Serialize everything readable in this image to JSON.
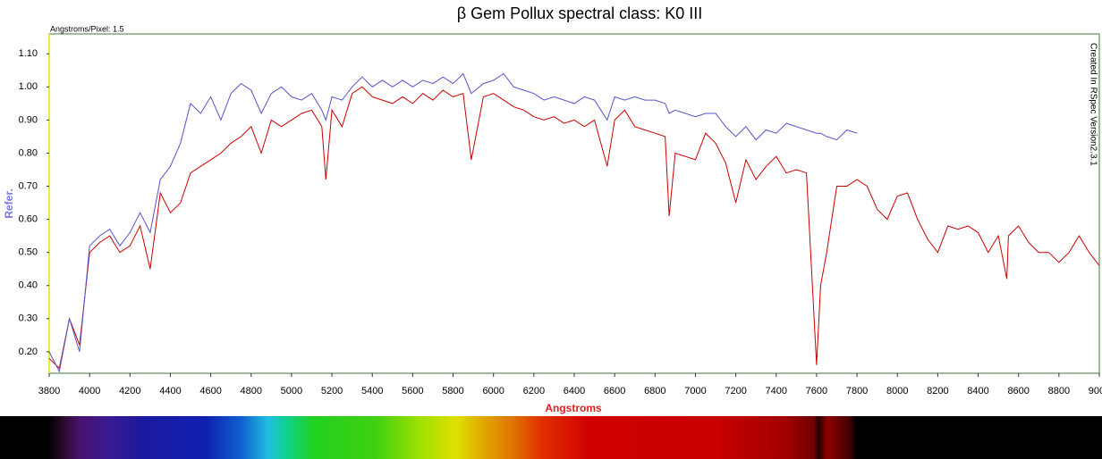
{
  "chart_data": {
    "type": "line",
    "title": "β Gem Pollux spectral class: K0 III",
    "xlabel": "Angstroms",
    "ylabel": "Refer.",
    "annotations": [
      "Angstroms/Pixel: 1.5",
      "Created In RSpec Version2.3.1"
    ],
    "x": [
      3800,
      3850,
      3900,
      3950,
      4000,
      4050,
      4100,
      4150,
      4200,
      4250,
      4300,
      4350,
      4400,
      4450,
      4500,
      4550,
      4600,
      4650,
      4700,
      4750,
      4800,
      4850,
      4900,
      4950,
      5000,
      5050,
      5100,
      5150,
      5170,
      5200,
      5250,
      5300,
      5350,
      5400,
      5450,
      5500,
      5550,
      5600,
      5650,
      5700,
      5750,
      5800,
      5850,
      5890,
      5950,
      6000,
      6050,
      6100,
      6150,
      6200,
      6250,
      6300,
      6350,
      6400,
      6450,
      6500,
      6563,
      6600,
      6650,
      6700,
      6750,
      6800,
      6850,
      6870,
      6900,
      6950,
      7000,
      7050,
      7100,
      7150,
      7200,
      7250,
      7300,
      7350,
      7400,
      7450,
      7500,
      7550,
      7600,
      7620,
      7650,
      7700,
      7750,
      7800,
      7850,
      7900,
      7950,
      8000,
      8050,
      8100,
      8150,
      8200,
      8250,
      8300,
      8350,
      8400,
      8450,
      8500,
      8542,
      8550,
      8600,
      8650,
      8700,
      8750,
      8800,
      8850,
      8900,
      8950,
      9000
    ],
    "series": [
      {
        "color": "#cc0000",
        "values": [
          0.18,
          0.15,
          0.3,
          0.22,
          0.5,
          0.53,
          0.55,
          0.5,
          0.52,
          0.58,
          0.45,
          0.68,
          0.62,
          0.65,
          0.74,
          0.76,
          0.78,
          0.8,
          0.83,
          0.85,
          0.88,
          0.8,
          0.9,
          0.88,
          0.9,
          0.92,
          0.93,
          0.88,
          0.72,
          0.93,
          0.88,
          0.98,
          1.0,
          0.97,
          0.96,
          0.95,
          0.97,
          0.95,
          0.98,
          0.96,
          0.99,
          0.97,
          0.98,
          0.78,
          0.97,
          0.98,
          0.96,
          0.94,
          0.93,
          0.91,
          0.9,
          0.91,
          0.89,
          0.9,
          0.88,
          0.9,
          0.76,
          0.9,
          0.93,
          0.88,
          0.87,
          0.86,
          0.85,
          0.61,
          0.8,
          0.79,
          0.78,
          0.86,
          0.83,
          0.77,
          0.65,
          0.78,
          0.72,
          0.76,
          0.79,
          0.74,
          0.75,
          0.74,
          0.16,
          0.4,
          0.5,
          0.7,
          0.7,
          0.72,
          0.7,
          0.63,
          0.6,
          0.67,
          0.68,
          0.6,
          0.54,
          0.5,
          0.58,
          0.57,
          0.58,
          0.56,
          0.5,
          0.55,
          0.42,
          0.55,
          0.58,
          0.53,
          0.5,
          0.5,
          0.47,
          0.5,
          0.55,
          0.5,
          0.46
        ]
      },
      {
        "color": "#5555cc",
        "values": [
          0.2,
          0.14,
          0.3,
          0.2,
          0.52,
          0.55,
          0.57,
          0.52,
          0.56,
          0.62,
          0.56,
          0.72,
          0.76,
          0.83,
          0.95,
          0.92,
          0.97,
          0.9,
          0.98,
          1.01,
          0.99,
          0.92,
          0.98,
          1.0,
          0.97,
          0.96,
          0.98,
          0.93,
          0.9,
          0.97,
          0.96,
          1.0,
          1.03,
          1.0,
          1.02,
          1.0,
          1.02,
          1.0,
          1.02,
          1.01,
          1.03,
          1.01,
          1.04,
          0.98,
          1.01,
          1.02,
          1.04,
          1.0,
          0.99,
          0.98,
          0.96,
          0.97,
          0.96,
          0.95,
          0.97,
          0.96,
          0.9,
          0.97,
          0.96,
          0.97,
          0.96,
          0.96,
          0.95,
          0.92,
          0.93,
          0.92,
          0.91,
          0.92,
          0.92,
          0.88,
          0.85,
          0.88,
          0.84,
          0.87,
          0.86,
          0.89,
          0.88,
          0.87,
          0.86,
          0.86,
          0.85,
          0.84,
          0.87,
          0.86,
          null,
          null,
          null,
          null,
          null,
          null,
          null,
          null,
          null,
          null,
          null,
          null,
          null,
          null,
          null,
          null,
          null,
          null,
          null,
          null,
          null,
          null,
          null,
          null,
          null
        ]
      }
    ],
    "xlim": [
      3800,
      9000
    ],
    "xticks": [
      3800,
      4000,
      4200,
      4400,
      4600,
      4800,
      5000,
      5200,
      5400,
      5600,
      5800,
      6000,
      6200,
      6400,
      6600,
      6800,
      7000,
      7200,
      7400,
      7600,
      7800,
      8000,
      8200,
      8400,
      8600,
      8800,
      9000
    ],
    "ylim": [
      0.135,
      1.16
    ],
    "yticks": [
      {
        "value": 0.2,
        "label": "0.20"
      },
      {
        "value": 0.3,
        "label": "0.30"
      },
      {
        "value": 0.4,
        "label": "0.40"
      },
      {
        "value": 0.5,
        "label": "0.50"
      },
      {
        "value": 0.6,
        "label": "0.60"
      },
      {
        "value": 0.7,
        "label": "0.70"
      },
      {
        "value": 0.8,
        "label": "0.80"
      },
      {
        "value": 0.9,
        "label": "0.90"
      },
      {
        "value": 1.0,
        "label": "1.00"
      },
      {
        "value": 1.1,
        "label": "1.10"
      }
    ]
  }
}
